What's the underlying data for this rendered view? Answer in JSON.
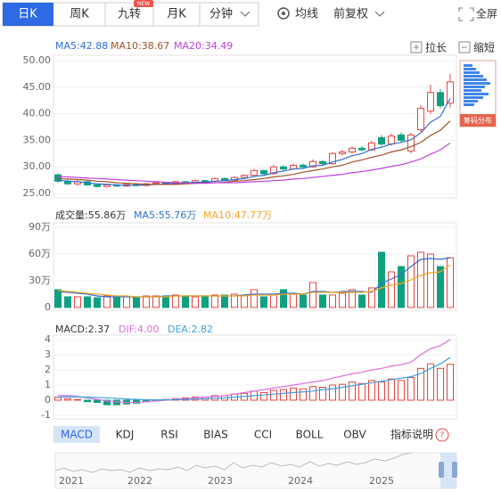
{
  "toolbar": {
    "tabs": [
      "日K",
      "周K",
      "九转",
      "月K",
      "分钟"
    ],
    "badge": "NEW",
    "options": [
      "均线",
      "前复权"
    ],
    "fullscreen": "全屏"
  },
  "zoom": [
    "拉长",
    "缩短"
  ],
  "chip_label": "筹码分布",
  "indicator_tabs": [
    "MACD",
    "KDJ",
    "RSI",
    "BIAS",
    "CCI",
    "BOLL",
    "OBV"
  ],
  "indicator_help": "指标说明",
  "help_icon": "?",
  "timeline": [
    "2021",
    "2022",
    "2023",
    "2024",
    "2025"
  ],
  "chart_data": [
    {
      "type": "candlestick",
      "up_color": "#e5443f",
      "down_color": "#11a07f",
      "open": [
        28.5,
        27.3,
        26.8,
        27.2,
        26.6,
        26.3,
        26.6,
        26.4,
        26.7,
        26.5,
        26.8,
        27.0,
        26.8,
        27.2,
        27.0,
        27.4,
        27.3,
        27.8,
        27.5,
        28.0,
        28.4,
        29.3,
        28.7,
        30.0,
        29.6,
        30.3,
        30.0,
        31.0,
        30.6,
        32.5,
        32.8,
        33.5,
        33.2,
        35.5,
        34.3,
        36.0,
        33.0,
        37.0,
        40.5,
        44.0,
        42.0
      ],
      "high": [
        28.8,
        27.6,
        27.5,
        27.4,
        26.8,
        26.8,
        26.8,
        26.9,
        26.9,
        27.0,
        27.2,
        27.2,
        27.4,
        27.4,
        27.6,
        27.6,
        28.0,
        28.0,
        28.2,
        28.6,
        29.6,
        29.5,
        30.3,
        30.3,
        30.6,
        30.6,
        31.4,
        31.2,
        32.8,
        33.2,
        33.9,
        33.9,
        34.9,
        36.0,
        36.3,
        36.5,
        36.4,
        41.6,
        45.5,
        44.6,
        47.5
      ],
      "low": [
        27.0,
        26.6,
        26.5,
        26.4,
        26.1,
        26.1,
        26.2,
        26.2,
        26.3,
        26.3,
        26.6,
        26.6,
        26.6,
        26.8,
        26.8,
        27.0,
        27.1,
        27.3,
        27.3,
        27.8,
        28.2,
        28.5,
        28.5,
        29.3,
        29.4,
        29.8,
        29.8,
        30.3,
        30.4,
        32.2,
        32.5,
        32.9,
        33.0,
        34.0,
        34.0,
        34.6,
        32.5,
        36.6,
        40.0,
        41.0,
        41.2
      ],
      "close": [
        27.3,
        26.8,
        27.2,
        26.6,
        26.3,
        26.6,
        26.4,
        26.7,
        26.5,
        26.8,
        27.0,
        26.8,
        27.2,
        27.0,
        27.4,
        27.3,
        27.8,
        27.5,
        28.0,
        28.4,
        29.3,
        28.7,
        30.0,
        29.6,
        30.3,
        30.0,
        31.0,
        30.6,
        32.5,
        32.8,
        33.5,
        33.2,
        34.5,
        34.3,
        35.8,
        35.0,
        36.0,
        41.0,
        44.0,
        41.5,
        46.0
      ],
      "series": [
        {
          "name": "MA5:42.88",
          "color": "#2f6fd6",
          "values": [
            27.5,
            27.3,
            27.2,
            27.0,
            26.8,
            26.7,
            26.6,
            26.5,
            26.5,
            26.6,
            26.7,
            26.8,
            26.9,
            27.0,
            27.1,
            27.1,
            27.3,
            27.4,
            27.6,
            27.8,
            28.2,
            28.4,
            28.9,
            29.2,
            29.6,
            29.7,
            30.2,
            30.3,
            30.9,
            31.4,
            32.1,
            32.5,
            33.3,
            33.7,
            34.3,
            34.6,
            35.1,
            36.4,
            38.4,
            39.5,
            42.88
          ]
        },
        {
          "name": "MA10:38.67",
          "color": "#a0522d",
          "values": [
            27.8,
            27.7,
            27.6,
            27.5,
            27.3,
            27.2,
            27.0,
            26.9,
            26.8,
            26.7,
            26.7,
            26.7,
            26.7,
            26.8,
            26.9,
            27.0,
            27.0,
            27.1,
            27.3,
            27.4,
            27.6,
            27.8,
            28.1,
            28.3,
            28.6,
            29.0,
            29.3,
            29.6,
            30.0,
            30.3,
            30.9,
            31.3,
            31.8,
            32.2,
            32.8,
            33.2,
            33.8,
            34.6,
            35.9,
            36.9,
            38.67
          ]
        },
        {
          "name": "MA20:34.49",
          "color": "#c040e0",
          "values": [
            28.2,
            28.1,
            28.0,
            27.9,
            27.8,
            27.7,
            27.6,
            27.5,
            27.4,
            27.3,
            27.2,
            27.1,
            27.0,
            27.0,
            26.9,
            26.9,
            27.0,
            27.0,
            27.0,
            27.1,
            27.2,
            27.3,
            27.4,
            27.5,
            27.7,
            27.8,
            28.0,
            28.2,
            28.4,
            28.6,
            28.9,
            29.1,
            29.4,
            29.7,
            30.1,
            30.4,
            30.9,
            31.5,
            32.4,
            33.2,
            34.49
          ]
        }
      ],
      "ylim": [
        25,
        50
      ],
      "yticks": [
        {
          "value": 50,
          "label": "50.00"
        },
        {
          "value": 45,
          "label": "45.00"
        },
        {
          "value": 40,
          "label": "40.00"
        },
        {
          "value": 35,
          "label": "35.00"
        },
        {
          "value": 30,
          "label": "30.00"
        },
        {
          "value": 25,
          "label": "25.00"
        }
      ]
    },
    {
      "type": "bar",
      "title": "成交量:55.86万",
      "up_color": "#e5443f",
      "down_color": "#11a07f",
      "values": [
        20,
        12,
        12,
        12,
        11,
        13,
        12,
        12,
        12,
        13,
        13,
        13,
        14,
        12,
        12,
        12,
        14,
        14,
        15,
        14,
        20,
        12,
        14,
        20,
        16,
        14,
        28,
        14,
        14,
        16,
        20,
        14,
        22,
        62,
        40,
        46,
        58,
        62,
        60,
        46,
        55.86
      ],
      "series": [
        {
          "name": "MA5:55.76万",
          "color": "#2f6fd6",
          "values": [
            18,
            17,
            16,
            15,
            13,
            12,
            12,
            12,
            12,
            12,
            12,
            13,
            13,
            13,
            13,
            13,
            13,
            13,
            13,
            14,
            15,
            15,
            15,
            16,
            16,
            15,
            18,
            18,
            17,
            18,
            18,
            18,
            17,
            27,
            32,
            37,
            46,
            54,
            55,
            54,
            55.76
          ]
        },
        {
          "name": "MA10:47.77万",
          "color": "#f5a623",
          "values": [
            19,
            18,
            17,
            16,
            15,
            14,
            13,
            13,
            12,
            12,
            12,
            12,
            13,
            13,
            13,
            13,
            13,
            13,
            13,
            13,
            14,
            14,
            14,
            15,
            15,
            15,
            17,
            17,
            17,
            17,
            17,
            17,
            18,
            22,
            25,
            27,
            31,
            36,
            39,
            40,
            47.77
          ]
        }
      ],
      "ylim": [
        0,
        90
      ],
      "yticks": [
        {
          "value": 90,
          "label": "90万"
        },
        {
          "value": 60,
          "label": "60万"
        },
        {
          "value": 30,
          "label": "30万"
        },
        0
      ]
    },
    {
      "type": "macd",
      "title": "MACD:2.37",
      "up_color": "#e5443f",
      "down_color": "#11a07f",
      "values": [
        0.2,
        0.1,
        0.05,
        -0.1,
        -0.15,
        -0.3,
        -0.3,
        -0.25,
        -0.2,
        -0.1,
        -0.05,
        0.05,
        0.1,
        0.15,
        0.2,
        0.2,
        0.3,
        0.3,
        0.4,
        0.45,
        0.6,
        0.5,
        0.65,
        0.7,
        0.8,
        0.75,
        0.9,
        0.85,
        1.0,
        1.05,
        1.2,
        1.1,
        1.3,
        1.2,
        1.4,
        1.3,
        1.5,
        2.1,
        2.4,
        2.1,
        2.37
      ],
      "series": [
        {
          "name": "DIF:4.00",
          "color": "#d96fe0",
          "values": [
            0.3,
            0.3,
            0.25,
            0.15,
            0.05,
            -0.05,
            -0.1,
            -0.15,
            -0.15,
            -0.1,
            -0.05,
            0,
            0.05,
            0.1,
            0.15,
            0.2,
            0.25,
            0.3,
            0.4,
            0.5,
            0.6,
            0.7,
            0.8,
            0.9,
            1.0,
            1.1,
            1.2,
            1.3,
            1.45,
            1.6,
            1.75,
            1.85,
            2.0,
            2.1,
            2.25,
            2.35,
            2.5,
            3.0,
            3.4,
            3.6,
            4.0
          ]
        },
        {
          "name": "DEA:2.82",
          "color": "#3fa0e0",
          "values": [
            0.2,
            0.22,
            0.22,
            0.2,
            0.18,
            0.15,
            0.12,
            0.08,
            0.05,
            0.03,
            0.02,
            0.02,
            0.03,
            0.05,
            0.07,
            0.1,
            0.12,
            0.15,
            0.2,
            0.25,
            0.3,
            0.35,
            0.4,
            0.45,
            0.5,
            0.55,
            0.6,
            0.7,
            0.75,
            0.85,
            0.95,
            1.05,
            1.15,
            1.25,
            1.35,
            1.45,
            1.55,
            1.75,
            2.1,
            2.4,
            2.82
          ]
        }
      ],
      "ylim": [
        -1,
        4
      ],
      "yticks": [
        4,
        3,
        2,
        1,
        0,
        -1
      ]
    }
  ]
}
